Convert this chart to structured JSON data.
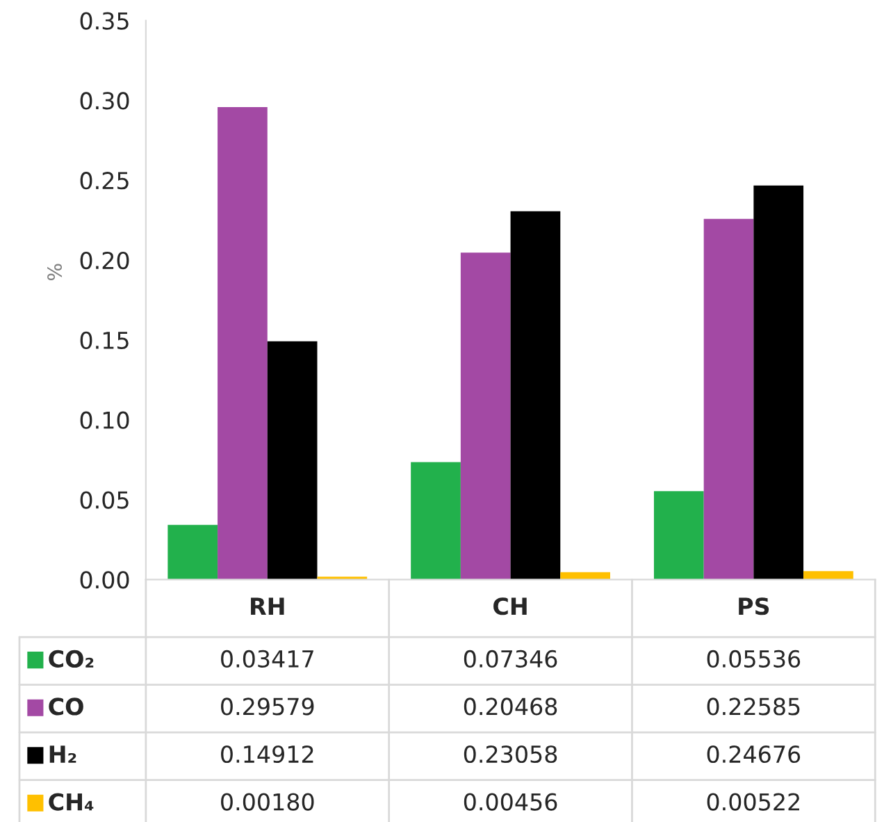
{
  "chart_data": {
    "type": "bar",
    "ylabel": "%",
    "categories": [
      "RH",
      "CH",
      "PS"
    ],
    "series": [
      {
        "name": "CO₂",
        "color": "#22b14c",
        "values": [
          0.03417,
          0.07346,
          0.05536
        ],
        "value_labels": [
          "0.03417",
          "0.07346",
          "0.05536"
        ]
      },
      {
        "name": "CO",
        "color": "#a349a4",
        "values": [
          0.29579,
          0.20468,
          0.22585
        ],
        "value_labels": [
          "0.29579",
          "0.20468",
          "0.22585"
        ]
      },
      {
        "name": "H₂",
        "color": "#000000",
        "values": [
          0.14912,
          0.23058,
          0.24676
        ],
        "value_labels": [
          "0.14912",
          "0.23058",
          "0.24676"
        ]
      },
      {
        "name": "CH₄",
        "color": "#ffc000",
        "values": [
          0.0018,
          0.00456,
          0.00522
        ],
        "value_labels": [
          "0.00180",
          "0.00456",
          "0.00522"
        ]
      }
    ],
    "ylim": [
      0,
      0.35
    ],
    "yticks": [
      {
        "value": 0,
        "label": "0.00"
      },
      {
        "value": 0.05,
        "label": "0.05"
      },
      {
        "value": 0.1,
        "label": "0.10"
      },
      {
        "value": 0.15,
        "label": "0.15"
      },
      {
        "value": 0.2,
        "label": "0.20"
      },
      {
        "value": 0.25,
        "label": "0.25"
      },
      {
        "value": 0.3,
        "label": "0.30"
      },
      {
        "value": 0.35,
        "label": "0.35"
      }
    ],
    "grid": false,
    "legend": "bottom left",
    "data_labels": true
  }
}
